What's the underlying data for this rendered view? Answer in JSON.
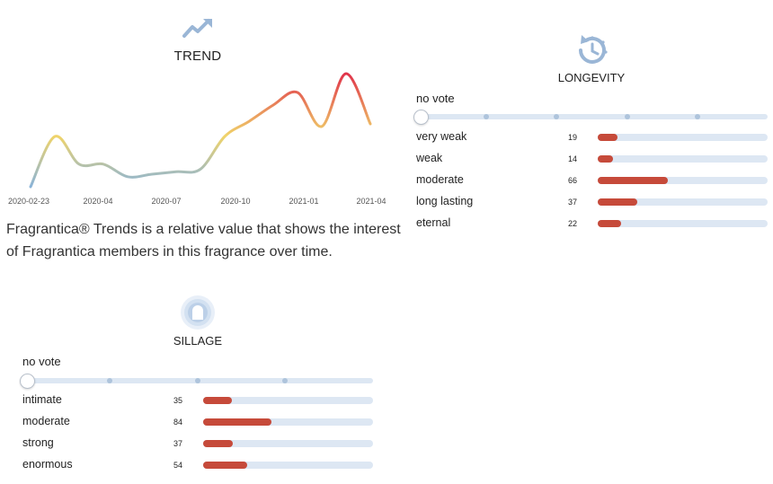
{
  "trend": {
    "icon": "trending-up-icon",
    "title": "TREND",
    "description": "Fragrantica® Trends is a relative value that shows the interest of Fragrantica members in this fragrance over time.",
    "x_ticks": [
      "2020-02-23",
      "2020-04",
      "2020-07",
      "2020-10",
      "2021-01",
      "2021-04"
    ]
  },
  "chart_data": {
    "type": "line",
    "title": "TREND",
    "x": [
      "2020-02-23",
      "2020-03",
      "2020-04",
      "2020-05",
      "2020-06",
      "2020-07",
      "2020-08",
      "2020-09",
      "2020-10",
      "2020-11",
      "2020-12",
      "2021-01",
      "2021-02",
      "2021-03",
      "2021-04"
    ],
    "series": [
      {
        "values": [
          0,
          40,
          18,
          18,
          8,
          10,
          12,
          14,
          40,
          52,
          65,
          75,
          48,
          90,
          50
        ]
      }
    ],
    "xlabel": "",
    "ylabel": "",
    "x_ticks": [
      "2020-02-23",
      "2020-04",
      "2020-07",
      "2020-10",
      "2021-01",
      "2021-04"
    ],
    "grid": false,
    "colors": {
      "low": "#8ab4d9",
      "mid": "#f0d46a",
      "high": "#e0334a"
    }
  },
  "longevity": {
    "icon": "clock-rotate-icon",
    "title": "LONGEVITY",
    "no_vote_label": "no vote",
    "rows": [
      {
        "label": "very weak",
        "count": "19",
        "value": 19
      },
      {
        "label": "weak",
        "count": "14",
        "value": 14
      },
      {
        "label": "moderate",
        "count": "66",
        "value": 66
      },
      {
        "label": "long lasting",
        "count": "37",
        "value": 37
      },
      {
        "label": "eternal",
        "count": "22",
        "value": 22
      }
    ],
    "scale_max": 160
  },
  "sillage": {
    "icon": "sillage-profile-icon",
    "title": "SILLAGE",
    "no_vote_label": "no vote",
    "rows": [
      {
        "label": "intimate",
        "count": "35",
        "value": 35
      },
      {
        "label": "moderate",
        "count": "84",
        "value": 84
      },
      {
        "label": "strong",
        "count": "37",
        "value": 37
      },
      {
        "label": "enormous",
        "count": "54",
        "value": 54
      }
    ],
    "scale_max": 210
  },
  "colors": {
    "bar_fill": "#c64a3a",
    "bar_track": "#dde7f3",
    "icon": "#9ab6d6"
  }
}
